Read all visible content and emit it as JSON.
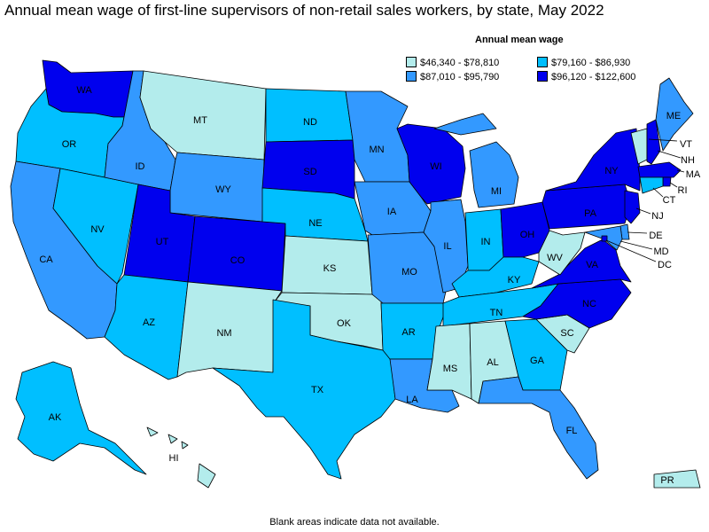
{
  "title": "Annual mean wage of first-line supervisors of non-retail sales workers, by state, May 2022",
  "legend": {
    "title": "Annual mean wage",
    "items": [
      {
        "label": "$46,340 - $78,810",
        "color": "#b3ecec"
      },
      {
        "label": "$87,010 - $95,790",
        "color": "#3399ff"
      },
      {
        "label": "$79,160 - $86,930",
        "color": "#00bfff"
      },
      {
        "label": "$96,120 - $122,600",
        "color": "#0000ee"
      }
    ]
  },
  "footnote": "Blank areas indicate data not available.",
  "states": [
    {
      "code": "WA",
      "label": "WA",
      "bin": 3
    },
    {
      "code": "OR",
      "label": "OR",
      "bin": 2
    },
    {
      "code": "CA",
      "label": "CA",
      "bin": 1
    },
    {
      "code": "NV",
      "label": "NV",
      "bin": 2
    },
    {
      "code": "ID",
      "label": "ID",
      "bin": 1
    },
    {
      "code": "MT",
      "label": "MT",
      "bin": 0
    },
    {
      "code": "WY",
      "label": "WY",
      "bin": 1
    },
    {
      "code": "UT",
      "label": "UT",
      "bin": 3
    },
    {
      "code": "AZ",
      "label": "AZ",
      "bin": 2
    },
    {
      "code": "CO",
      "label": "CO",
      "bin": 3
    },
    {
      "code": "NM",
      "label": "NM",
      "bin": 0
    },
    {
      "code": "ND",
      "label": "ND",
      "bin": 2
    },
    {
      "code": "SD",
      "label": "SD",
      "bin": 3
    },
    {
      "code": "NE",
      "label": "NE",
      "bin": 2
    },
    {
      "code": "KS",
      "label": "KS",
      "bin": 0
    },
    {
      "code": "OK",
      "label": "OK",
      "bin": 0
    },
    {
      "code": "TX",
      "label": "TX",
      "bin": 2
    },
    {
      "code": "MN",
      "label": "MN",
      "bin": 1
    },
    {
      "code": "IA",
      "label": "IA",
      "bin": 1
    },
    {
      "code": "MO",
      "label": "MO",
      "bin": 1
    },
    {
      "code": "AR",
      "label": "AR",
      "bin": 2
    },
    {
      "code": "LA",
      "label": "LA",
      "bin": 1
    },
    {
      "code": "WI",
      "label": "WI",
      "bin": 3
    },
    {
      "code": "IL",
      "label": "IL",
      "bin": 1
    },
    {
      "code": "MI",
      "label": "MI",
      "bin": 1
    },
    {
      "code": "IN",
      "label": "IN",
      "bin": 2
    },
    {
      "code": "OH",
      "label": "OH",
      "bin": 3
    },
    {
      "code": "KY",
      "label": "KY",
      "bin": 2
    },
    {
      "code": "TN",
      "label": "TN",
      "bin": 2
    },
    {
      "code": "MS",
      "label": "MS",
      "bin": 0
    },
    {
      "code": "AL",
      "label": "AL",
      "bin": 0
    },
    {
      "code": "GA",
      "label": "GA",
      "bin": 2
    },
    {
      "code": "FL",
      "label": "FL",
      "bin": 1
    },
    {
      "code": "SC",
      "label": "SC",
      "bin": 0
    },
    {
      "code": "NC",
      "label": "NC",
      "bin": 3
    },
    {
      "code": "VA",
      "label": "VA",
      "bin": 3
    },
    {
      "code": "WV",
      "label": "WV",
      "bin": 0
    },
    {
      "code": "PA",
      "label": "PA",
      "bin": 3
    },
    {
      "code": "NY",
      "label": "NY",
      "bin": 3
    },
    {
      "code": "VT",
      "label": "VT",
      "bin": 0
    },
    {
      "code": "NH",
      "label": "NH",
      "bin": 3
    },
    {
      "code": "ME",
      "label": "ME",
      "bin": 1
    },
    {
      "code": "MA",
      "label": "MA",
      "bin": 3
    },
    {
      "code": "RI",
      "label": "RI",
      "bin": 3
    },
    {
      "code": "CT",
      "label": "CT",
      "bin": 2
    },
    {
      "code": "NJ",
      "label": "NJ",
      "bin": 3
    },
    {
      "code": "DE",
      "label": "DE",
      "bin": 1
    },
    {
      "code": "MD",
      "label": "MD",
      "bin": 1
    },
    {
      "code": "DC",
      "label": "DC",
      "bin": 3
    },
    {
      "code": "AK",
      "label": "AK",
      "bin": 2
    },
    {
      "code": "HI",
      "label": "HI",
      "bin": 0
    },
    {
      "code": "PR",
      "label": "PR",
      "bin": 0
    }
  ]
}
